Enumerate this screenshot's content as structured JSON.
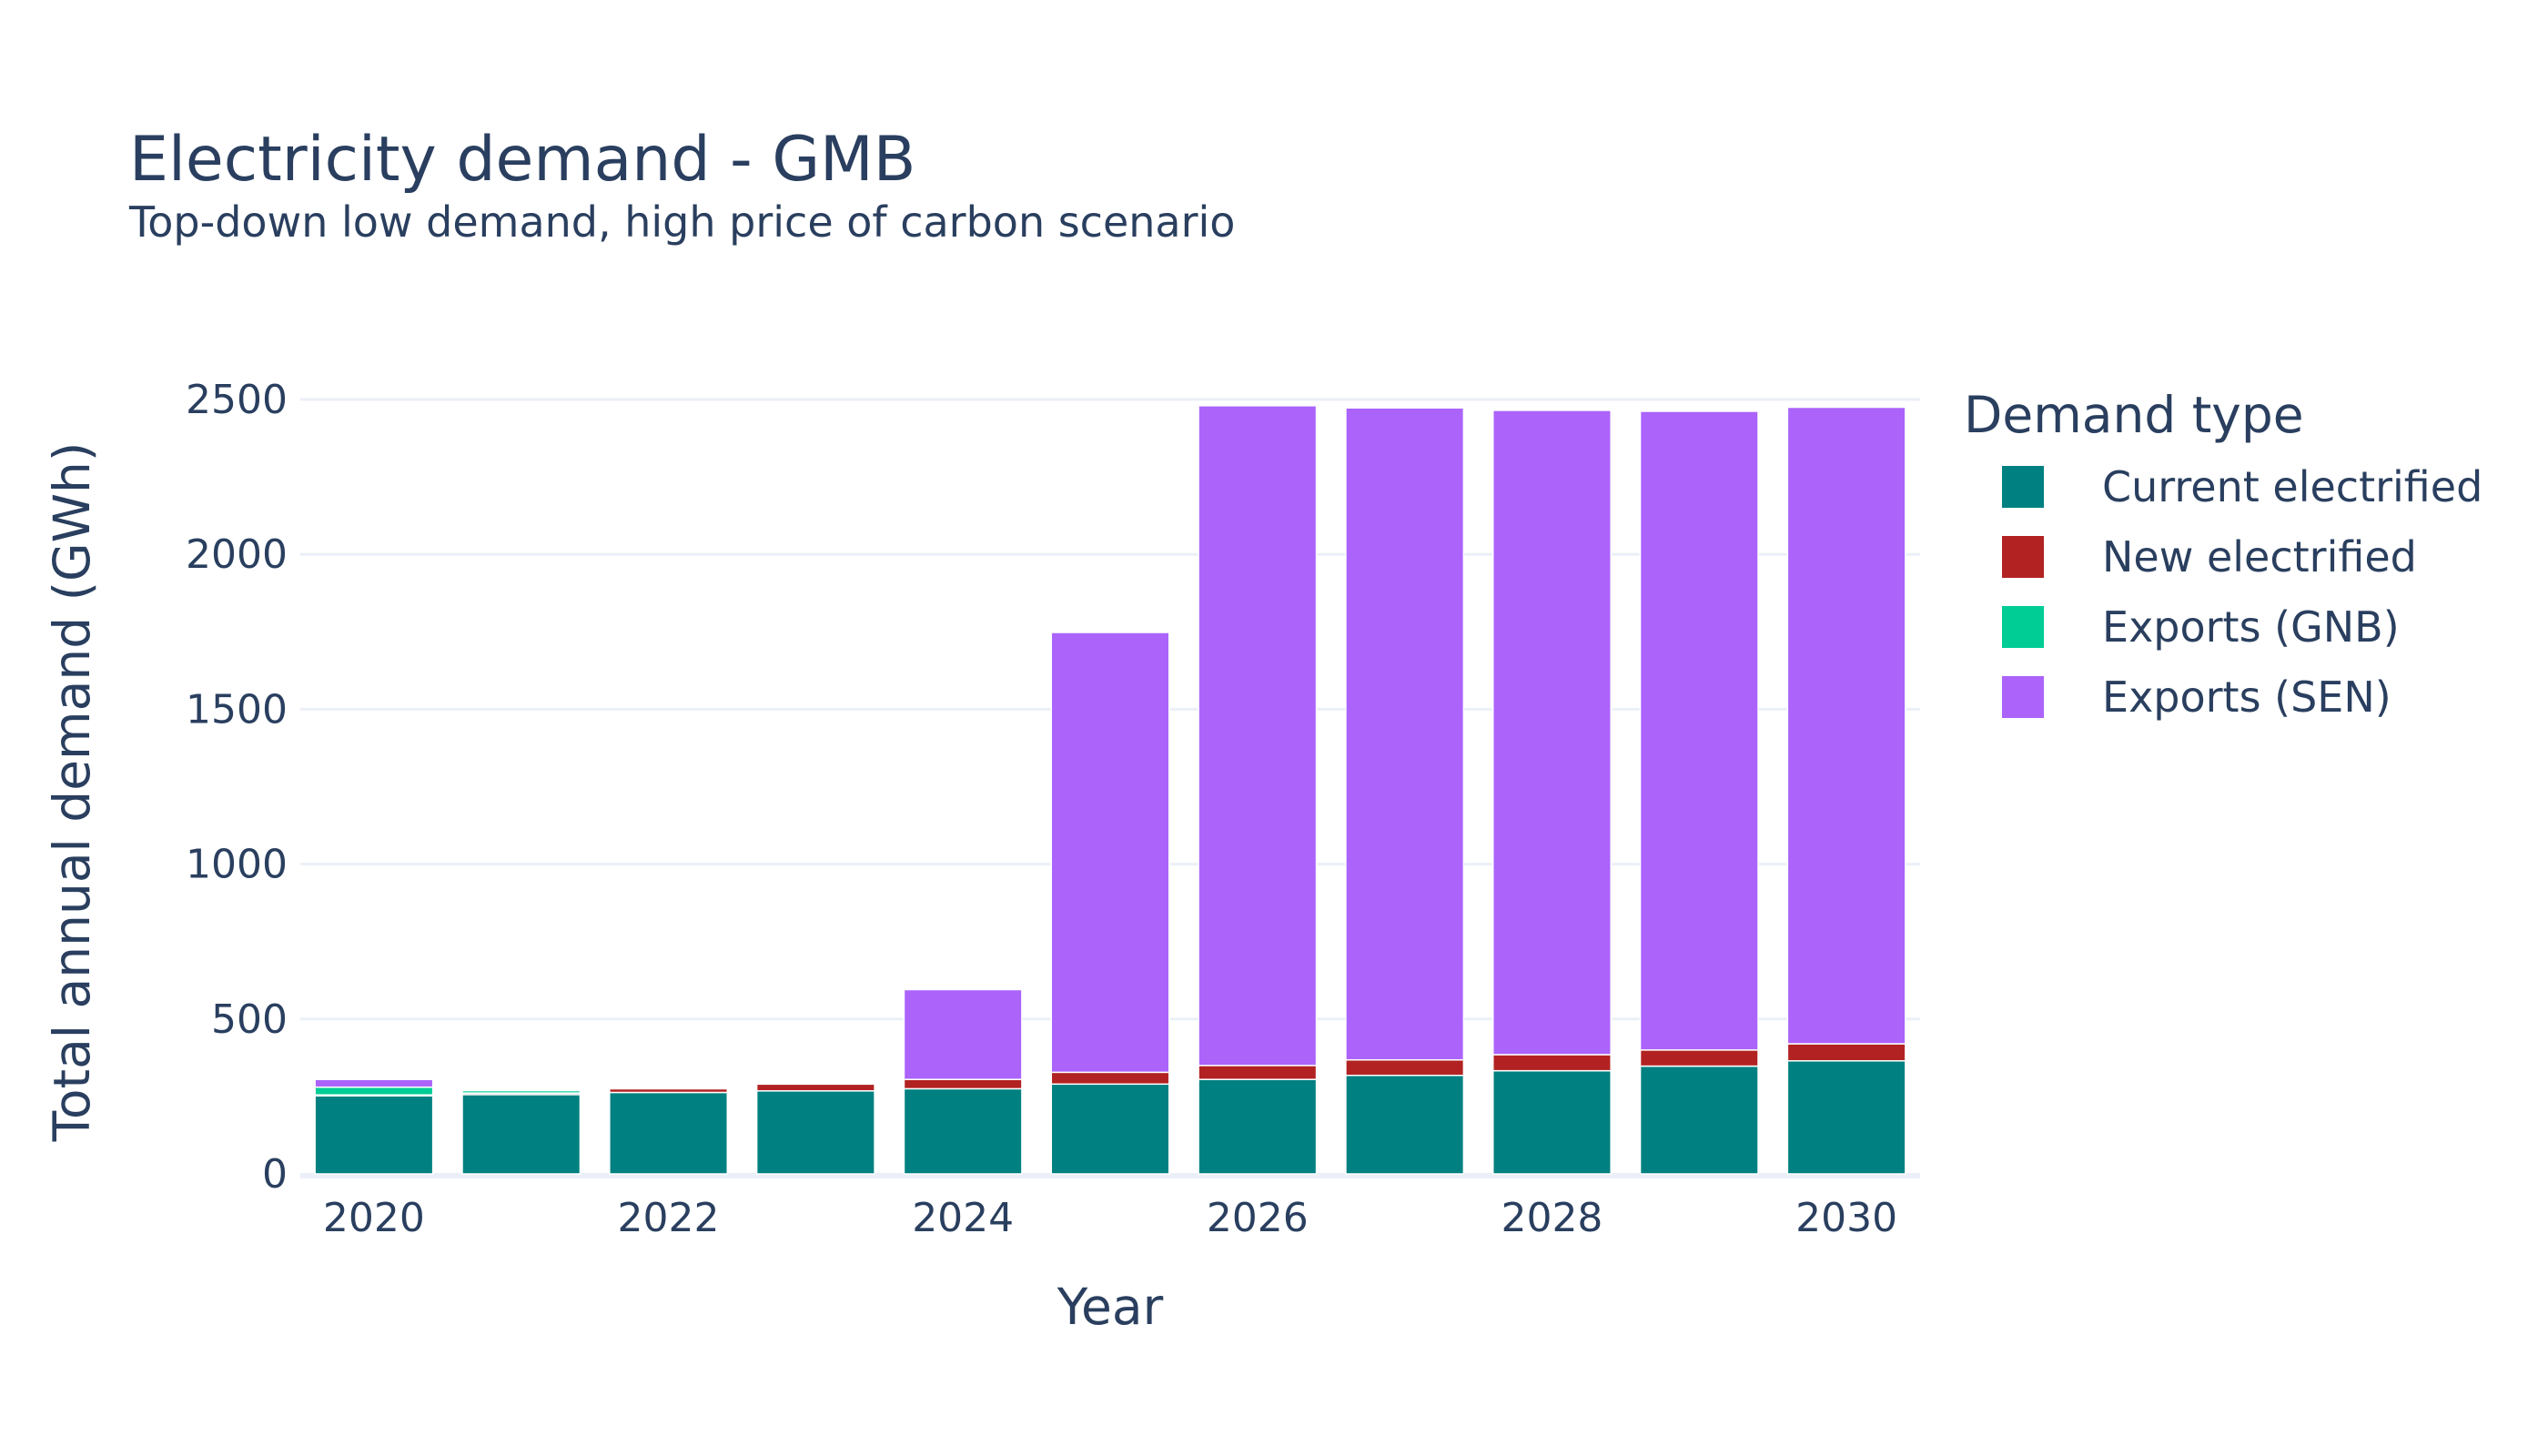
{
  "chart_data": {
    "type": "bar",
    "stacked": true,
    "title": "Electricity demand - GMB",
    "subtitle": "Top-down low demand, high price of carbon scenario",
    "xlabel": "Year",
    "ylabel": "Total annual demand (GWh)",
    "ylim": [
      0,
      2600
    ],
    "yticks": [
      0,
      500,
      1000,
      1500,
      2000,
      2500
    ],
    "xticks": [
      2020,
      2022,
      2024,
      2026,
      2028,
      2030
    ],
    "x": [
      2020,
      2021,
      2022,
      2023,
      2024,
      2025,
      2026,
      2027,
      2028,
      2029,
      2030
    ],
    "grid": true,
    "legend": {
      "title": "Demand type",
      "placement": "right"
    },
    "series": [
      {
        "name": "Current electrified",
        "color": "#008080",
        "values": [
          252,
          256,
          263,
          268,
          275,
          290,
          305,
          318,
          333,
          348,
          365
        ]
      },
      {
        "name": "New electrified",
        "color": "#b22222",
        "values": [
          3,
          5,
          12,
          22,
          30,
          38,
          45,
          50,
          52,
          52,
          55
        ]
      },
      {
        "name": "Exports (GNB)",
        "color": "#00cc96",
        "values": [
          25,
          8,
          0,
          0,
          0,
          0,
          0,
          0,
          0,
          0,
          0
        ]
      },
      {
        "name": "Exports (SEN)",
        "color": "#ab63fa",
        "values": [
          25,
          3,
          3,
          3,
          290,
          1420,
          2130,
          2105,
          2080,
          2062,
          2055
        ]
      }
    ]
  }
}
